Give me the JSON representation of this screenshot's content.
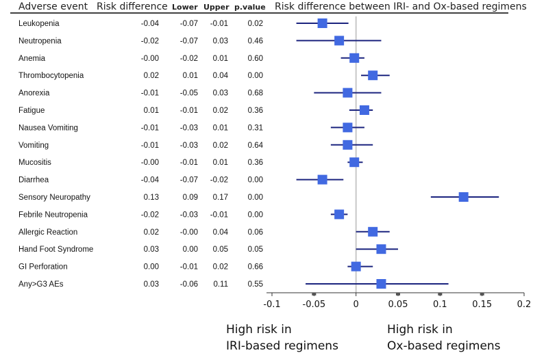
{
  "chart_data": {
    "type": "forest",
    "title": "Risk difference between IRI- and Ox-based regimens",
    "columns": {
      "event": "Adverse event",
      "rd": "Risk difference",
      "lower": "Lower",
      "upper": "Upper",
      "p": "p.value"
    },
    "rows": [
      {
        "event": "Leukopenia",
        "rd": "-0.04",
        "lower": "-0.07",
        "upper": "-0.01",
        "p": "0.02",
        "est": -0.04,
        "lo": -0.071,
        "hi": -0.009
      },
      {
        "event": "Neutropenia",
        "rd": "-0.02",
        "lower": "-0.07",
        "upper": "0.03",
        "p": "0.46",
        "est": -0.02,
        "lo": -0.071,
        "hi": 0.03
      },
      {
        "event": "Anemia",
        "rd": "-0.00",
        "lower": "-0.02",
        "upper": "0.01",
        "p": "0.60",
        "est": -0.002,
        "lo": -0.018,
        "hi": 0.01
      },
      {
        "event": "Thrombocytopenia",
        "rd": "0.02",
        "lower": "0.01",
        "upper": "0.04",
        "p": "0.00",
        "est": 0.02,
        "lo": 0.006,
        "hi": 0.04
      },
      {
        "event": "Anorexia",
        "rd": "-0.01",
        "lower": "-0.05",
        "upper": "0.03",
        "p": "0.68",
        "est": -0.01,
        "lo": -0.05,
        "hi": 0.03
      },
      {
        "event": "Fatigue",
        "rd": "0.01",
        "lower": "-0.01",
        "upper": "0.02",
        "p": "0.36",
        "est": 0.01,
        "lo": -0.008,
        "hi": 0.02
      },
      {
        "event": "Nausea Vomiting",
        "rd": "-0.01",
        "lower": "-0.03",
        "upper": "0.01",
        "p": "0.31",
        "est": -0.01,
        "lo": -0.03,
        "hi": 0.01
      },
      {
        "event": "Vomiting",
        "rd": "-0.01",
        "lower": "-0.03",
        "upper": "0.02",
        "p": "0.64",
        "est": -0.01,
        "lo": -0.03,
        "hi": 0.02
      },
      {
        "event": "Mucositis",
        "rd": "-0.00",
        "lower": "-0.01",
        "upper": "0.01",
        "p": "0.36",
        "est": -0.002,
        "lo": -0.01,
        "hi": 0.008
      },
      {
        "event": "Diarrhea",
        "rd": "-0.04",
        "lower": "-0.07",
        "upper": "-0.02",
        "p": "0.00",
        "est": -0.04,
        "lo": -0.071,
        "hi": -0.015
      },
      {
        "event": "Sensory Neuropathy",
        "rd": "0.13",
        "lower": "0.09",
        "upper": "0.17",
        "p": "0.00",
        "est": 0.128,
        "lo": 0.089,
        "hi": 0.17
      },
      {
        "event": "Febrile Neutropenia",
        "rd": "-0.02",
        "lower": "-0.03",
        "upper": "-0.01",
        "p": "0.00",
        "est": -0.02,
        "lo": -0.03,
        "hi": -0.01
      },
      {
        "event": "Allergic Reaction",
        "rd": "0.02",
        "lower": "-0.00",
        "upper": "0.04",
        "p": "0.06",
        "est": 0.02,
        "lo": 0.0,
        "hi": 0.04
      },
      {
        "event": "Hand Foot Syndrome",
        "rd": "0.03",
        "lower": "0.00",
        "upper": "0.05",
        "p": "0.05",
        "est": 0.03,
        "lo": 0.0,
        "hi": 0.05
      },
      {
        "event": "GI Perforation",
        "rd": "0.00",
        "lower": "-0.01",
        "upper": "0.02",
        "p": "0.66",
        "est": 0.0,
        "lo": -0.01,
        "hi": 0.02
      },
      {
        "event": "Any>G3 AEs",
        "rd": "0.03",
        "lower": "-0.06",
        "upper": "0.11",
        "p": "0.55",
        "est": 0.03,
        "lo": -0.06,
        "hi": 0.11
      }
    ],
    "xlim": [
      -0.1,
      0.2
    ],
    "xticks": [
      -0.1,
      -0.05,
      0,
      0.05,
      0.1,
      0.15,
      0.2
    ],
    "xtick_labels": [
      "-0.1",
      "-0.05",
      "0",
      "0.05",
      "0.1",
      "0.15",
      "0.2"
    ],
    "reference_line": 0,
    "annotation_left": [
      "High risk in",
      "IRI-based regimens"
    ],
    "annotation_right": [
      "High risk in",
      "Ox-based regimens"
    ],
    "colors": {
      "marker": "#4169E1",
      "ci_line": "#1a237e",
      "reference": "#c8c8c8",
      "axis": "#333333",
      "rule": "#000000"
    }
  }
}
